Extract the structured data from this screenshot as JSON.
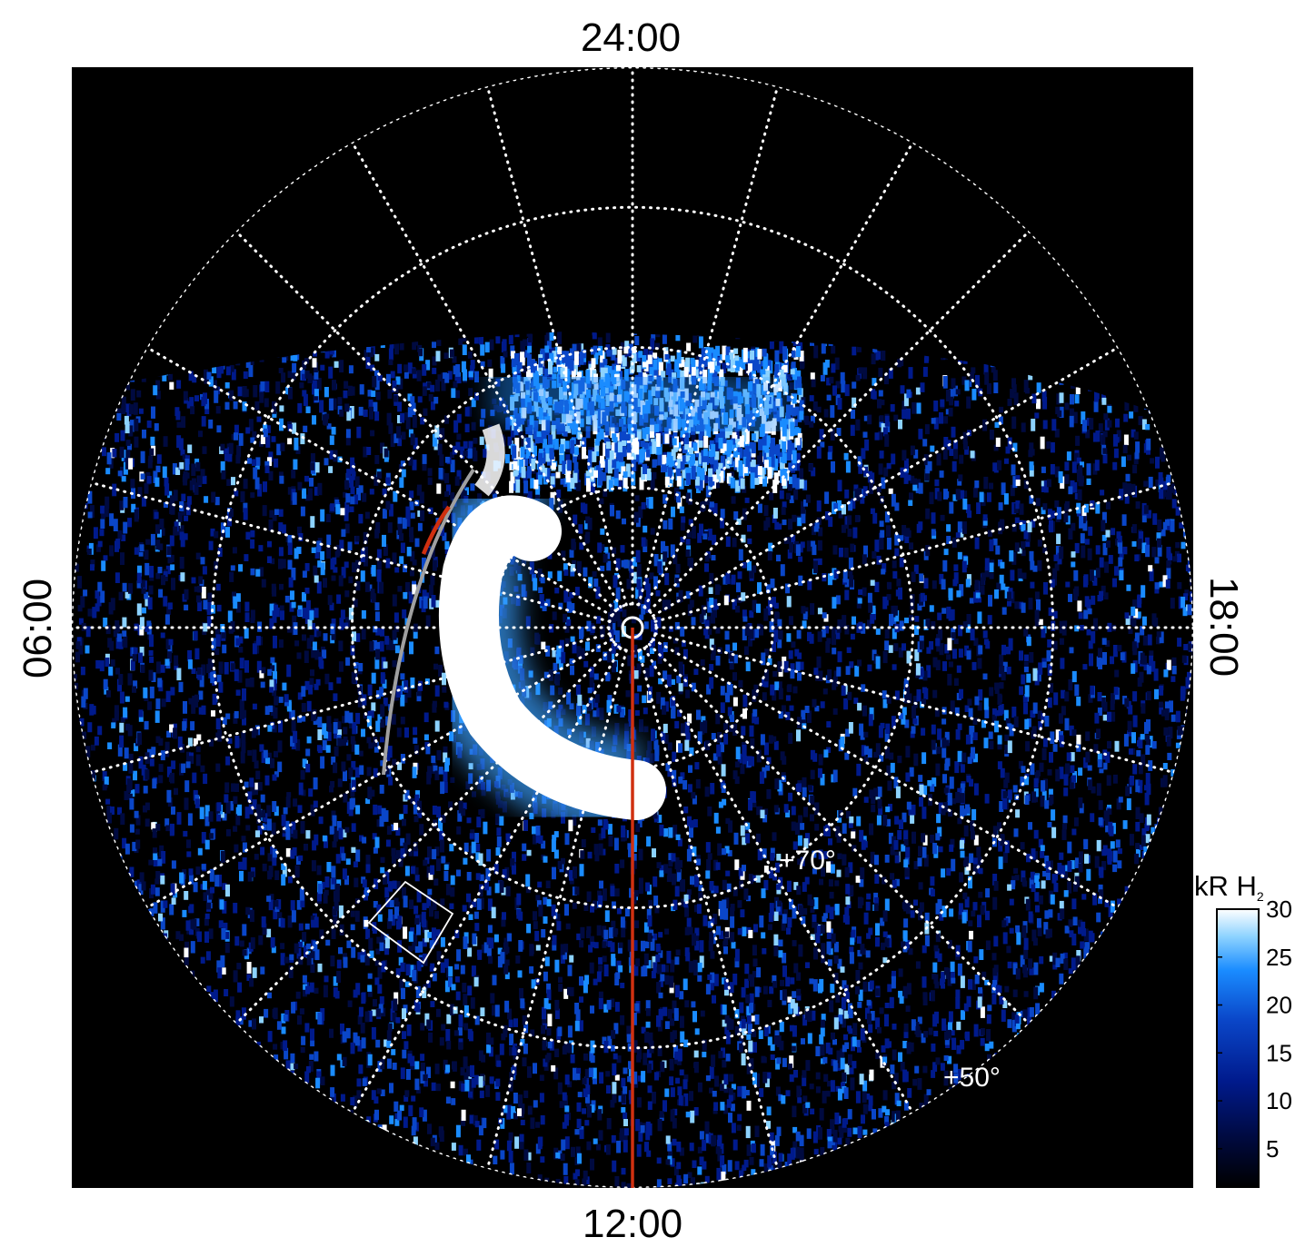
{
  "chart_data": {
    "type": "heatmap",
    "projection": "polar (north pole view)",
    "local_time_labels": {
      "top": "24:00",
      "left": "06:00",
      "bottom": "12:00",
      "right": "18:00"
    },
    "local_time_meridian_step_hours": 1,
    "latitude_rings_deg": [
      50,
      60,
      70,
      80
    ],
    "latitude_labels": [
      "+70°",
      "+50°"
    ],
    "colorbar": {
      "label_main": "kR H",
      "label_sub": "2",
      "range": [
        1,
        30
      ],
      "ticks": [
        "5",
        "10",
        "15",
        "20",
        "25",
        "30"
      ],
      "tick_values": [
        5,
        10,
        15,
        20,
        25,
        30
      ],
      "colors": [
        "#000000",
        "#000a40",
        "#001a8c",
        "#0a46c8",
        "#1a8cff",
        "#8cd2ff",
        "#ffffff"
      ]
    },
    "overlays": {
      "red_line_color": "#d03010",
      "gray_arc_color": "#a0a0a0",
      "box_color": "#ffffff"
    }
  }
}
